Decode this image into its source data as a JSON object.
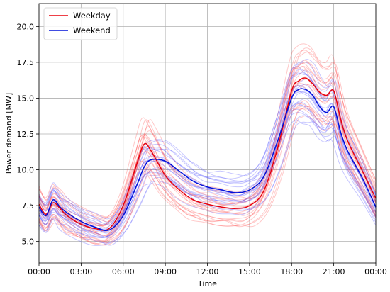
{
  "chart_data": {
    "type": "line",
    "xlabel": "Time",
    "ylabel": "Power demand [MW]",
    "xlim": [
      0,
      24
    ],
    "ylim": [
      3.5,
      21.6
    ],
    "x_ticks": [
      {
        "value": 0,
        "label": "00:00"
      },
      {
        "value": 3,
        "label": "03:00"
      },
      {
        "value": 6,
        "label": "06:00"
      },
      {
        "value": 9,
        "label": "09:00"
      },
      {
        "value": 12,
        "label": "12:00"
      },
      {
        "value": 15,
        "label": "15:00"
      },
      {
        "value": 18,
        "label": "18:00"
      },
      {
        "value": 21,
        "label": "21:00"
      },
      {
        "value": 24,
        "label": "00:00"
      }
    ],
    "y_ticks": [
      {
        "value": 5.0,
        "label": "5.0"
      },
      {
        "value": 7.5,
        "label": "7.5"
      },
      {
        "value": 10.0,
        "label": "10.0"
      },
      {
        "value": 12.5,
        "label": "12.5"
      },
      {
        "value": 15.0,
        "label": "15.0"
      },
      {
        "value": 17.5,
        "label": "17.5"
      },
      {
        "value": 20.0,
        "label": "20.0"
      }
    ],
    "grid": true,
    "legend_position": "top-left",
    "x": [
      0,
      0.5,
      1,
      1.5,
      2,
      3,
      4,
      5,
      6,
      7,
      7.5,
      8,
      9,
      10,
      11,
      12,
      13,
      14,
      15,
      16,
      17,
      18,
      18.5,
      19,
      19.5,
      20,
      20.5,
      21,
      21.5,
      22,
      23,
      24
    ],
    "series": [
      {
        "name": "Weekday",
        "color": "#e8000b",
        "values": [
          7.6,
          6.9,
          7.7,
          7.3,
          6.8,
          6.2,
          5.9,
          5.9,
          7.5,
          10.5,
          11.8,
          11.3,
          9.6,
          8.6,
          7.9,
          7.6,
          7.4,
          7.3,
          7.5,
          8.5,
          11.5,
          15.5,
          16.2,
          16.4,
          16.0,
          15.4,
          15.2,
          15.5,
          13.5,
          12.0,
          10.0,
          8.0
        ]
      },
      {
        "name": "Weekend",
        "color": "#0010d9",
        "values": [
          7.4,
          6.8,
          7.9,
          7.4,
          7.0,
          6.4,
          6.0,
          5.8,
          6.8,
          9.0,
          10.2,
          10.7,
          10.6,
          9.9,
          9.2,
          8.8,
          8.6,
          8.4,
          8.6,
          9.5,
          12.0,
          15.0,
          15.6,
          15.6,
          15.2,
          14.4,
          14.0,
          14.4,
          12.6,
          11.3,
          9.5,
          7.4
        ]
      }
    ],
    "background_lines": {
      "weekday_color": "#ff5555",
      "weekend_color": "#5555ff",
      "count_per_group": 22
    }
  }
}
